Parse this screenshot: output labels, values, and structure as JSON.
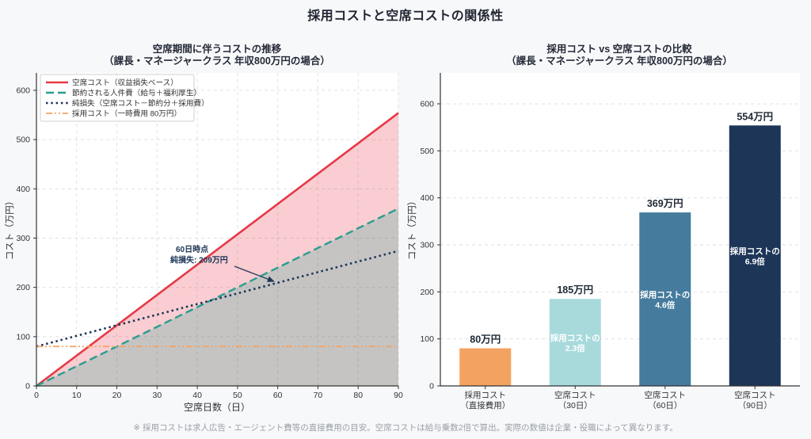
{
  "page": {
    "title": "採用コストと空席コストの関係性",
    "footnote": "※ 採用コストは求人広告・エージェント費等の直接費用の目安。空席コストは給与乗数2倍で算出。実際の数値は企業・役職によって異なります。",
    "background_color": "#f7f8fa",
    "title_color": "#1f2430"
  },
  "chart_data": [
    {
      "type": "line",
      "title": "空席期間に伴うコストの推移",
      "subtitle": "（課長・マネージャークラス 年収800万円の場合）",
      "xlabel": "空席日数（日）",
      "ylabel": "コスト（万円）",
      "xlim": [
        0,
        90
      ],
      "ylim": [
        0,
        638
      ],
      "xticks": [
        0,
        10,
        20,
        30,
        40,
        50,
        60,
        70,
        80,
        90
      ],
      "yticks": [
        0,
        100,
        200,
        300,
        400,
        500,
        600
      ],
      "grid": "dashed both axes, light gray",
      "legend_position": "upper-left",
      "series": [
        {
          "name": "空席コスト（収益損失ベース）",
          "color": "#e63946",
          "style": "solid",
          "x": [
            0,
            90
          ],
          "y": [
            0,
            554
          ]
        },
        {
          "name": "節約される人件費（給与＋福利厚生）",
          "color": "#2a9d8f",
          "style": "dashed",
          "x": [
            0,
            90
          ],
          "y": [
            0,
            360
          ]
        },
        {
          "name": "純損失（空席コスト－節約分＋採用費）",
          "color": "#1d3557",
          "style": "dotted",
          "x": [
            0,
            90
          ],
          "y": [
            80,
            274
          ]
        },
        {
          "name": "採用コスト（一時費用 80万円）",
          "color": "#f4a261",
          "style": "dashdot",
          "x": [
            0,
            90
          ],
          "y": [
            80,
            80
          ]
        }
      ],
      "fills": [
        {
          "between": "空席コスト and 節約される人件費",
          "color": "rgba(230,57,70,0.25)"
        },
        {
          "between": "節約される人件費 and zero",
          "color": "rgba(90,85,83,0.35)"
        }
      ],
      "annotation": {
        "line1": "60日時点",
        "line2": "純損失: 209万円",
        "target_x": 60,
        "target_y": 209,
        "color": "#1d3557"
      }
    },
    {
      "type": "bar",
      "title": "採用コスト vs 空席コストの比較",
      "subtitle": "（課長・マネージャークラス 年収800万円の場合）",
      "ylabel": "コスト（万円）",
      "ylim": [
        0,
        666
      ],
      "yticks": [
        0,
        100,
        200,
        300,
        400,
        500,
        600
      ],
      "grid": "horizontal dashed, light gray",
      "categories": [
        [
          "採用コスト",
          "（直接費用）"
        ],
        [
          "空席コスト",
          "（30日）"
        ],
        [
          "空席コスト",
          "（60日）"
        ],
        [
          "空席コスト",
          "（90日）"
        ]
      ],
      "values": [
        80,
        185,
        369,
        554
      ],
      "value_labels": [
        "80万円",
        "185万円",
        "369万円",
        "554万円"
      ],
      "bar_colors": [
        "#f4a261",
        "#a8dadc",
        "#457b9d",
        "#1d3557"
      ],
      "inner_labels": [
        null,
        [
          "採用コストの",
          "2.3倍"
        ],
        [
          "採用コストの",
          "4.6倍"
        ],
        [
          "採用コストの",
          "6.9倍"
        ]
      ],
      "inner_label_color": "#ffffff",
      "value_label_color": "#1f2937"
    }
  ]
}
